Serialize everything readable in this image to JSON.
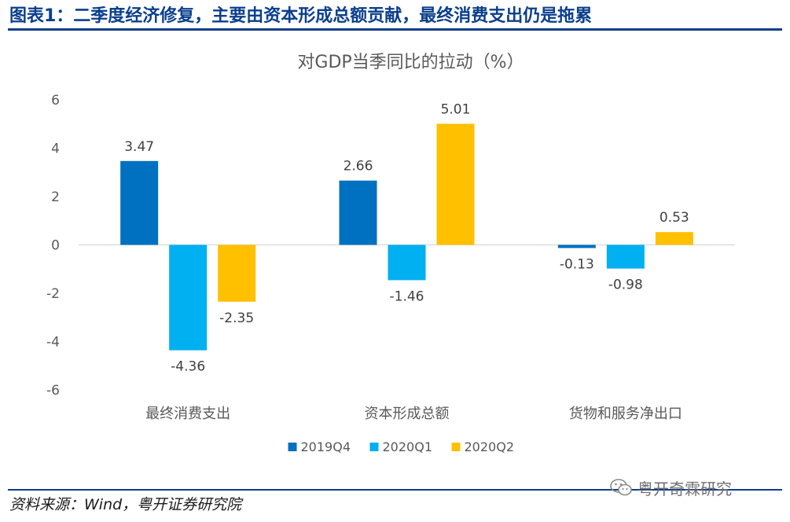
{
  "header": {
    "title": "图表1：二季度经济修复，主要由资本形成总额贡献，最终消费支出仍是拖累"
  },
  "footer": {
    "source": "资料来源：Wind，粤开证券研究院",
    "watermark": "粤开奇霖研究"
  },
  "colors": {
    "header": "#0b3f8c",
    "series": [
      "#0070c0",
      "#00b0f0",
      "#ffc000"
    ]
  },
  "chart_data": {
    "type": "bar",
    "title": "对GDP当季同比的拉动（%）",
    "categories": [
      "最终消费支出",
      "资本形成总额",
      "货物和服务净出口"
    ],
    "series": [
      {
        "name": "2019Q4",
        "values": [
          3.47,
          2.66,
          -0.13
        ],
        "labels": [
          "3.47",
          "2.66",
          "-0.13"
        ]
      },
      {
        "name": "2020Q1",
        "values": [
          -4.36,
          -1.46,
          -0.98
        ],
        "labels": [
          "-4.36",
          "-1.46",
          "-0.98"
        ]
      },
      {
        "name": "2020Q2",
        "values": [
          -2.35,
          5.01,
          0.53
        ],
        "labels": [
          "-2.35",
          "5.01",
          "0.53"
        ]
      }
    ],
    "ylim": [
      -6,
      6
    ],
    "yticks": [
      -6,
      -4,
      -2,
      0,
      2,
      4,
      6
    ],
    "xlabel": "",
    "ylabel": "",
    "grid": false,
    "legend": "bottom"
  }
}
